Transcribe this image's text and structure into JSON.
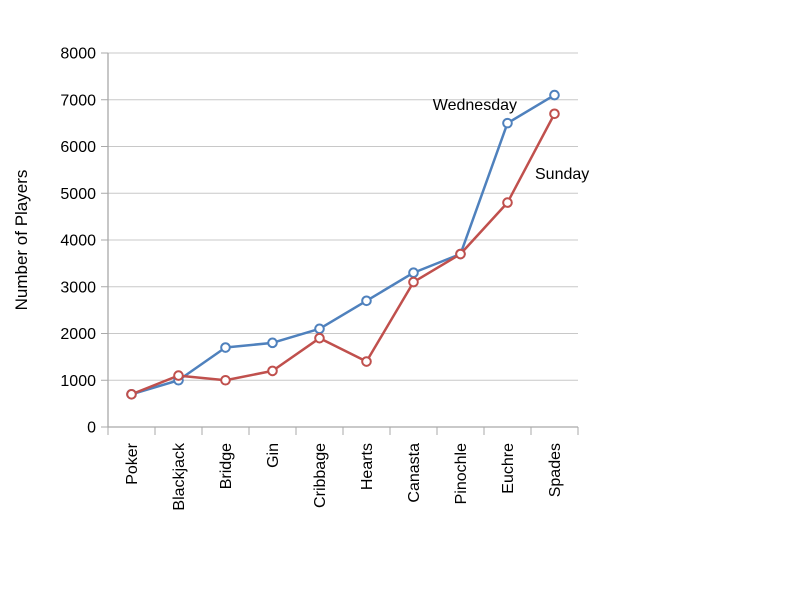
{
  "chart_data": {
    "type": "line",
    "categories": [
      "Poker",
      "Blackjack",
      "Bridge",
      "Gin",
      "Cribbage",
      "Hearts",
      "Canasta",
      "Pinochle",
      "Euchre",
      "Spades"
    ],
    "series": [
      {
        "name": "Wednesday",
        "color": "#4F81BD",
        "values": [
          700,
          1000,
          1700,
          1800,
          2100,
          2700,
          3300,
          3700,
          6500,
          7100
        ]
      },
      {
        "name": "Sunday",
        "color": "#C0504D",
        "values": [
          700,
          1100,
          1000,
          1200,
          1900,
          1400,
          3100,
          3700,
          4800,
          6700
        ]
      }
    ],
    "title": "",
    "xlabel": "",
    "ylabel": "Number of Players",
    "ylim": [
      0,
      8000
    ],
    "ytick_step": 1000,
    "ytick_labels": [
      "0",
      "1000",
      "2000",
      "3000",
      "4000",
      "5000",
      "6000",
      "7000",
      "8000"
    ],
    "grid": true,
    "marker": "circle-open",
    "legend_position": "inline-annotations",
    "annotations": [
      {
        "text": "Wednesday",
        "x": 517,
        "y": 110,
        "anchor": "end"
      },
      {
        "text": "Sunday",
        "x": 535,
        "y": 179,
        "anchor": "start"
      }
    ]
  },
  "colors": {
    "background": "#ffffff",
    "gridline": "#c8c8c8",
    "axis": "#a9a9a9",
    "text": "#000000",
    "marker_fill": "#ffffff"
  }
}
